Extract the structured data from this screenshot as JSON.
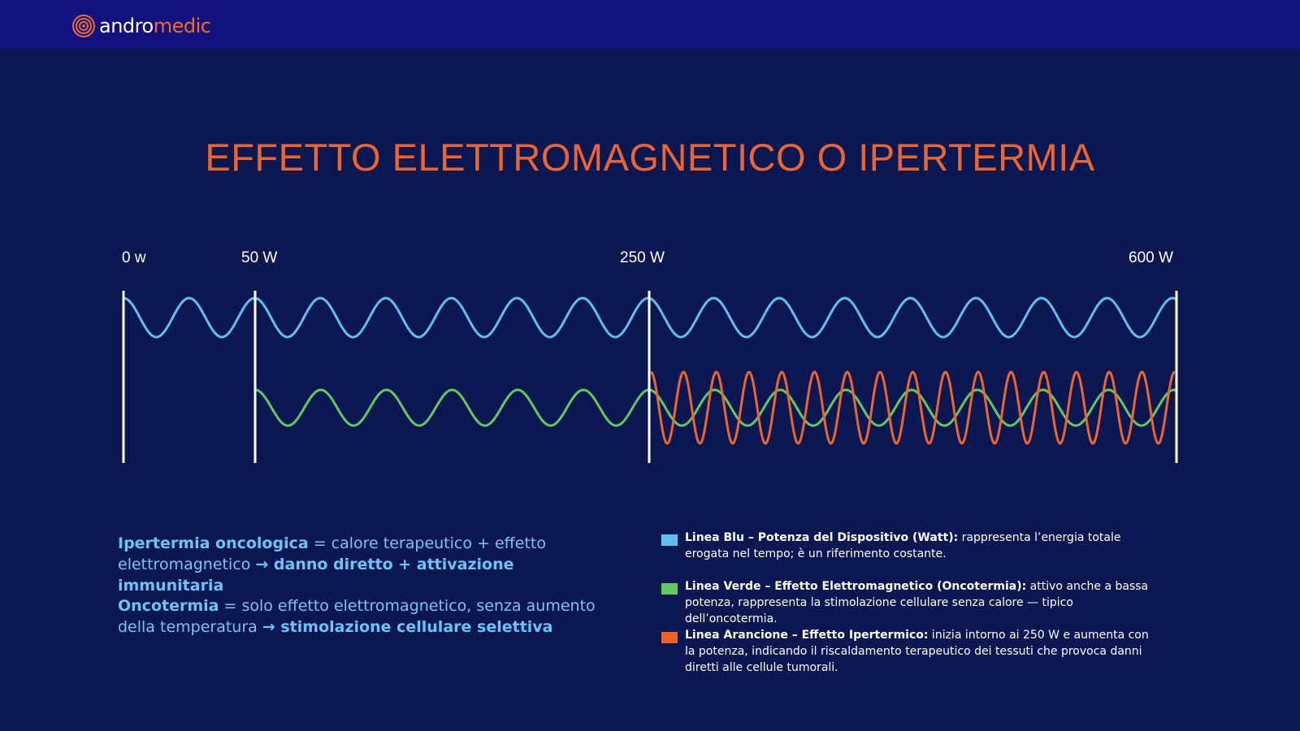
{
  "brand": {
    "part1": "andro",
    "part2": "medic",
    "color_primary": "#ffffff",
    "color_accent": "#f06a2f"
  },
  "title": "EFFETTO ELETTROMAGNETICO O IPERTERMIA",
  "power_labels": [
    "0 w",
    "50 W",
    "250 W",
    "600 W"
  ],
  "colors": {
    "blue": "#5ec0f0",
    "green": "#63c764",
    "orange": "#ea6532",
    "background": "#0b1750",
    "topbar": "#11127f"
  },
  "left_text": {
    "p1": {
      "term": "Ipertermia oncologica",
      "definition": " = calore terapeutico + effetto elettromagnetico ",
      "arrow": "→",
      "result": " danno diretto + attivazione immunitaria"
    },
    "p2": {
      "term": "Oncotermia",
      "definition": " = solo effetto elettromagnetico, senza aumento della temperatura ",
      "arrow": "→",
      "result": " stimolazione cellulare selettiva"
    }
  },
  "legend": [
    {
      "color": "#5ec0f0",
      "title": "Linea Blu – Potenza del Dispositivo (Watt):",
      "desc": " rappresenta l’energia totale erogata nel tempo; è un riferimento costante."
    },
    {
      "color": "#63c764",
      "title": "Linea Verde – Effetto Elettromagnetico (Oncotermia):",
      "desc": " attivo anche a bassa potenza, rappresenta la stimolazione cellulare senza calore — tipico dell’oncotermia."
    },
    {
      "color": "#ea6532",
      "title": "Linea Arancione – Effetto Ipertermico:",
      "desc": " inizia intorno ai 250 W e aumenta con la potenza, indicando il riscaldamento terapeutico dei tessuti che provoca danni diretti alle cellule tumorali."
    }
  ]
}
